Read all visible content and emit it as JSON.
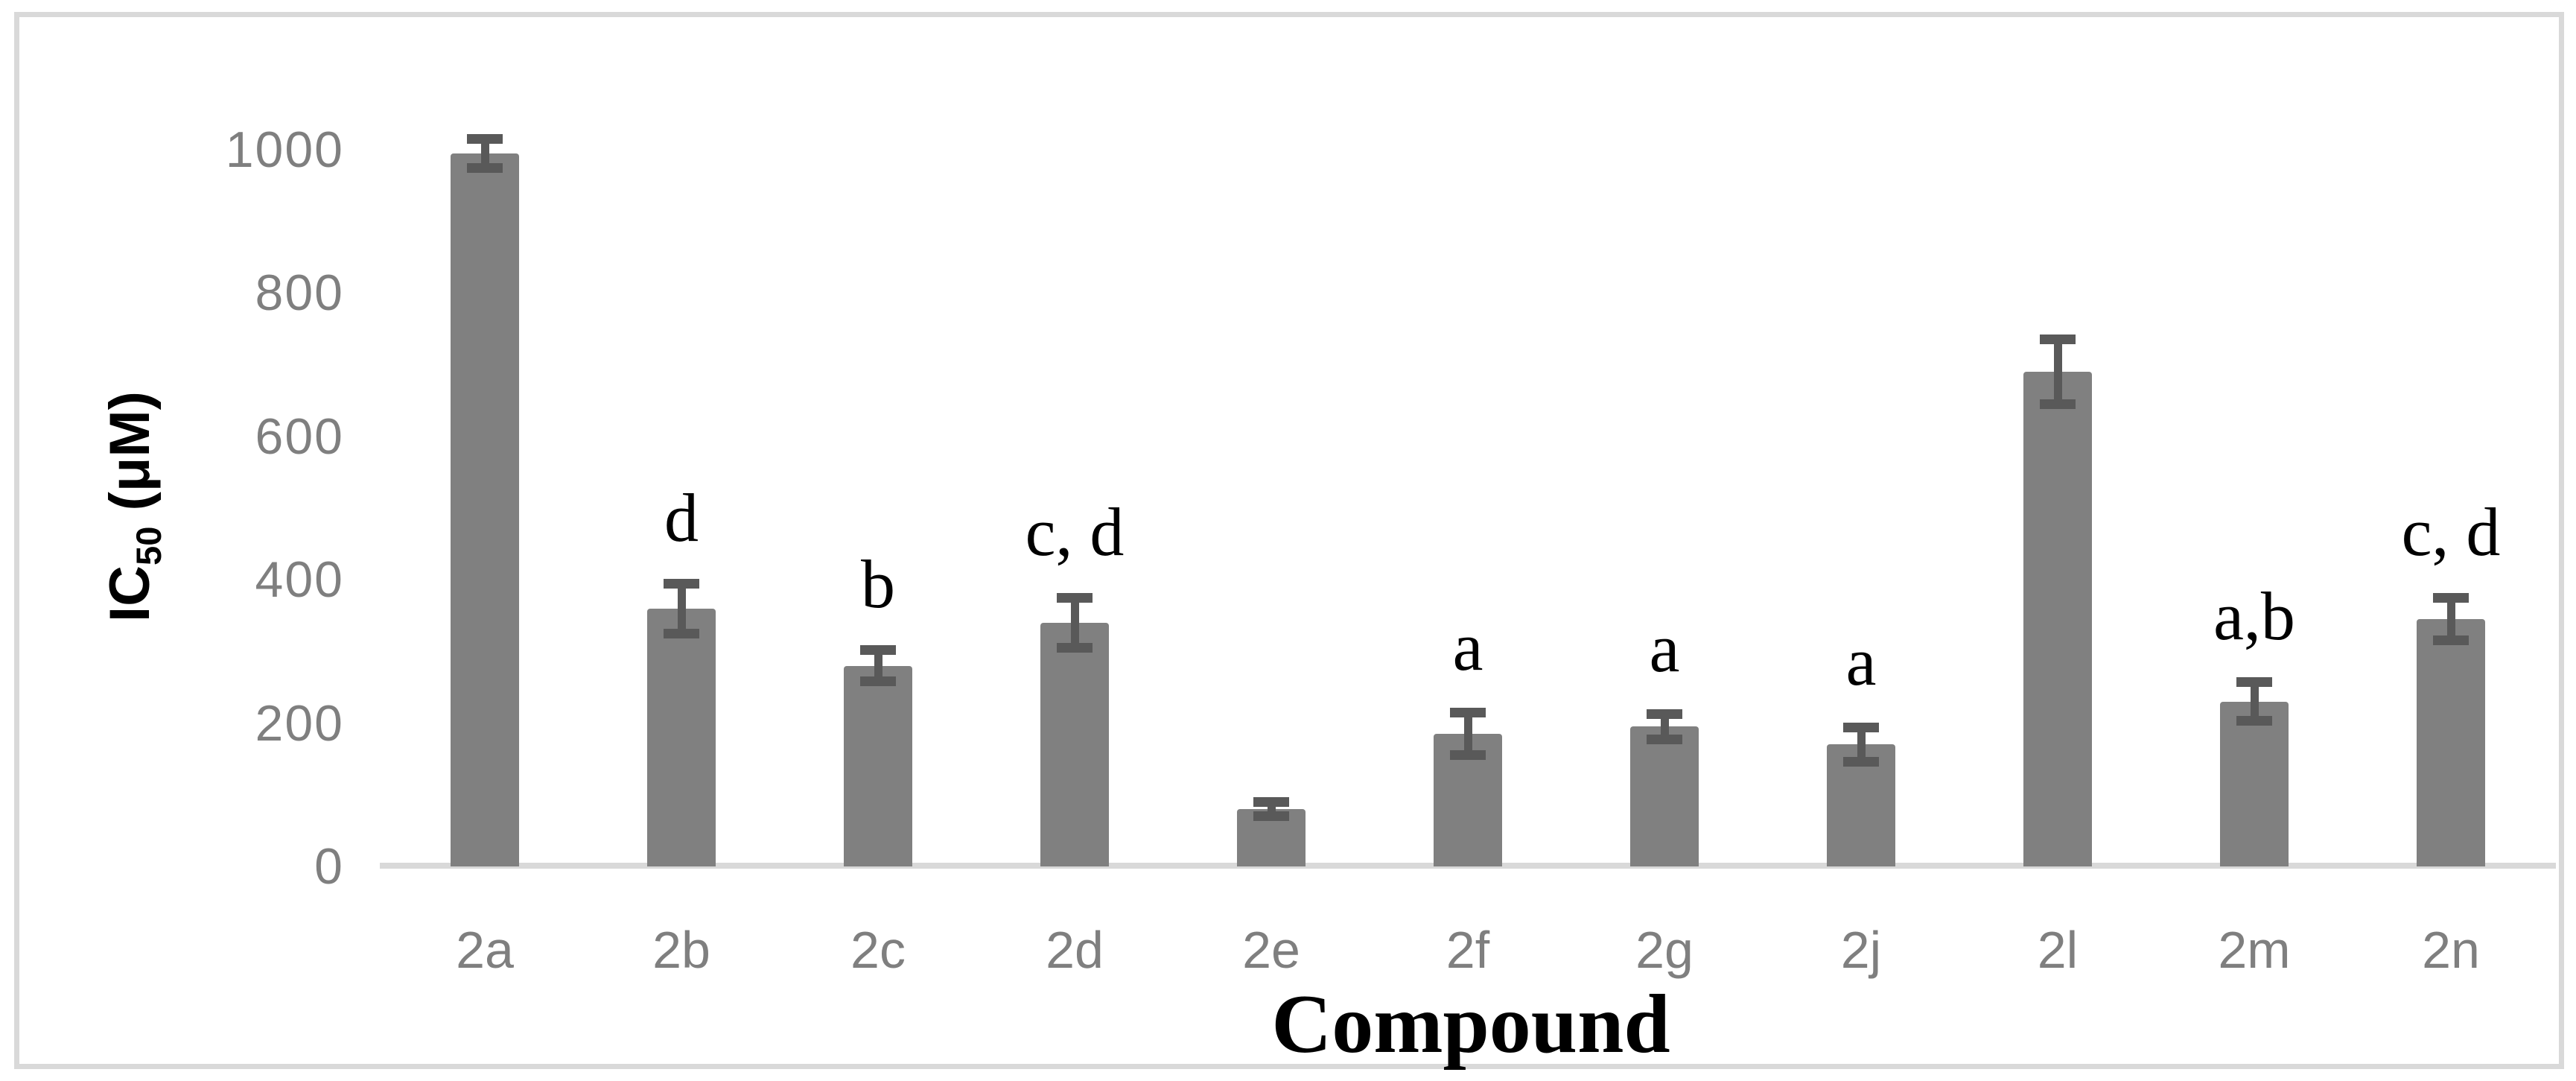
{
  "figure": {
    "background": "#ffffff",
    "frame_color": "#d9d9d9"
  },
  "chart_data": {
    "type": "bar",
    "title": "",
    "xlabel": "Compound",
    "ylabel": {
      "prefix": "IC",
      "sub": "50",
      "suffix": " (μM)"
    },
    "categories": [
      "2a",
      "2b",
      "2c",
      "2d",
      "2e",
      "2f",
      "2g",
      "2j",
      "2l",
      "2m",
      "2n"
    ],
    "values": [
      995,
      360,
      280,
      340,
      80,
      185,
      195,
      170,
      690,
      230,
      345
    ],
    "errors": [
      20,
      35,
      22,
      35,
      10,
      30,
      18,
      24,
      45,
      27,
      30
    ],
    "annotations": [
      "",
      "d",
      "b",
      "c, d",
      "",
      "a",
      "a",
      "a",
      "",
      "a,b",
      "c, d"
    ],
    "yticks": [
      0,
      200,
      400,
      600,
      800,
      1000
    ],
    "ylim": [
      0,
      1000
    ],
    "grid": false,
    "legend": null,
    "bar_color": "#808080",
    "error_bar_color": "#595959",
    "axis_line_color": "#d9d9d9",
    "tick_label_color": "#7f7f7f",
    "annotation_color": "#000000"
  }
}
